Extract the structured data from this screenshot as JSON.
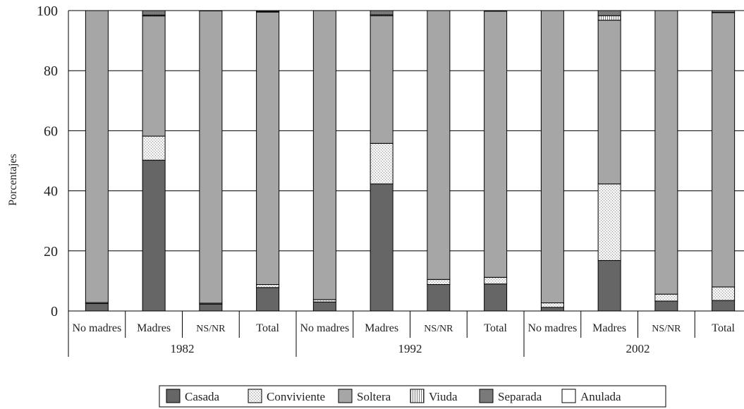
{
  "chart_data": {
    "type": "bar",
    "stacked": true,
    "ylabel": "Porcentajes",
    "ylim": [
      0,
      100
    ],
    "yticks": [
      "0",
      "20",
      "40",
      "60",
      "80",
      "100"
    ],
    "grid": true,
    "legend_position": "bottom",
    "groups": [
      {
        "label": "1982",
        "categories": [
          "No madres",
          "Madres",
          "NS/NR",
          "Total"
        ]
      },
      {
        "label": "1992",
        "categories": [
          "No madres",
          "Madres",
          "NS/NR",
          "Total"
        ]
      },
      {
        "label": "2002",
        "categories": [
          "No madres",
          "Madres",
          "NS/NR",
          "Total"
        ]
      }
    ],
    "series": [
      {
        "name": "Casada",
        "color": "#666666",
        "pattern": "solid",
        "values": [
          2.5,
          50.2,
          2.3,
          7.8,
          3.0,
          42.3,
          8.8,
          9.0,
          1.2,
          16.8,
          3.3,
          3.5
        ]
      },
      {
        "name": "Conviviente",
        "color": "#e6e6e6",
        "pattern": "dots",
        "values": [
          0.3,
          8.0,
          0.3,
          1.0,
          0.8,
          13.5,
          1.7,
          2.2,
          1.5,
          25.5,
          2.3,
          4.5
        ]
      },
      {
        "name": "Soltera",
        "color": "#a6a6a6",
        "pattern": "solid",
        "values": [
          97.2,
          40.0,
          97.3,
          90.7,
          96.2,
          42.5,
          89.5,
          88.6,
          97.3,
          54.5,
          94.4,
          91.3
        ]
      },
      {
        "name": "Viuda",
        "color": "#ffffff",
        "pattern": "vertical-lines",
        "values": [
          0,
          0.3,
          0,
          0.2,
          0,
          0.3,
          0,
          0.1,
          0,
          1.5,
          0,
          0.1
        ]
      },
      {
        "name": "Separada",
        "color": "#7a7a7a",
        "pattern": "solid",
        "values": [
          0,
          1.5,
          0.1,
          0.3,
          0,
          1.4,
          0,
          0.1,
          0,
          1.7,
          0,
          0.6
        ]
      },
      {
        "name": "Anulada",
        "color": "#ffffff",
        "pattern": "solid",
        "values": [
          0,
          0,
          0,
          0,
          0,
          0,
          0,
          0,
          0,
          0,
          0,
          0
        ]
      }
    ]
  }
}
